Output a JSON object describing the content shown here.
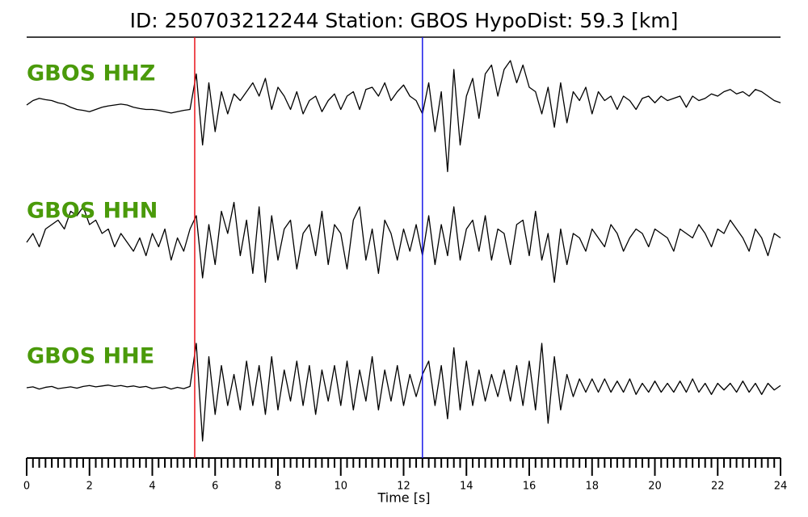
{
  "chart_data": {
    "type": "seismogram",
    "title": "ID: 250703212244   Station: GBOS   HypoDist:    59.3 [km]",
    "xlabel": "Time [s]",
    "xlim": [
      0,
      24
    ],
    "xticks": [
      0,
      2,
      4,
      6,
      8,
      10,
      12,
      14,
      16,
      18,
      20,
      22,
      24
    ],
    "minor_ticks_per_major": 10,
    "ylim": [
      -1.6,
      1.6
    ],
    "label_color": "#4a9a0a",
    "picks": [
      {
        "time": 5.35,
        "color": "#e8131a"
      },
      {
        "time": 12.6,
        "color": "#1a1ae8"
      }
    ],
    "x": [
      0,
      0.2,
      0.4,
      0.6,
      0.8,
      1,
      1.2,
      1.4,
      1.6,
      1.8,
      2,
      2.2,
      2.4,
      2.6,
      2.8,
      3,
      3.2,
      3.4,
      3.6,
      3.8,
      4,
      4.2,
      4.4,
      4.6,
      4.8,
      5,
      5.2,
      5.4,
      5.6,
      5.8,
      6,
      6.2,
      6.4,
      6.6,
      6.8,
      7,
      7.2,
      7.4,
      7.6,
      7.8,
      8,
      8.2,
      8.4,
      8.6,
      8.8,
      9,
      9.2,
      9.4,
      9.6,
      9.8,
      10,
      10.2,
      10.4,
      10.6,
      10.8,
      11,
      11.2,
      11.4,
      11.6,
      11.8,
      12,
      12.2,
      12.4,
      12.6,
      12.8,
      13,
      13.2,
      13.4,
      13.6,
      13.8,
      14,
      14.2,
      14.4,
      14.6,
      14.8,
      15,
      15.2,
      15.4,
      15.6,
      15.8,
      16,
      16.2,
      16.4,
      16.6,
      16.8,
      17,
      17.2,
      17.4,
      17.6,
      17.8,
      18,
      18.2,
      18.4,
      18.6,
      18.8,
      19,
      19.2,
      19.4,
      19.6,
      19.8,
      20,
      20.2,
      20.4,
      20.6,
      20.8,
      21,
      21.2,
      21.4,
      21.6,
      21.8,
      22,
      22.2,
      22.4,
      22.6,
      22.8,
      23,
      23.2,
      23.4,
      23.6,
      23.8,
      24
    ],
    "series": [
      {
        "name": "GBOS HHZ",
        "color": "#000000",
        "values": [
          0,
          0.1,
          0.15,
          0.12,
          0.1,
          0.05,
          0.02,
          -0.05,
          -0.1,
          -0.12,
          -0.15,
          -0.1,
          -0.05,
          -0.02,
          0,
          0.02,
          0,
          -0.05,
          -0.08,
          -0.1,
          -0.1,
          -0.12,
          -0.15,
          -0.18,
          -0.15,
          -0.12,
          -0.1,
          0.7,
          -0.9,
          0.5,
          -0.6,
          0.3,
          -0.2,
          0.25,
          0.1,
          0.3,
          0.5,
          0.2,
          0.6,
          -0.1,
          0.4,
          0.2,
          -0.1,
          0.3,
          -0.2,
          0.1,
          0.2,
          -0.15,
          0.1,
          0.25,
          -0.1,
          0.2,
          0.3,
          -0.1,
          0.35,
          0.4,
          0.2,
          0.5,
          0.1,
          0.3,
          0.45,
          0.2,
          0.1,
          -0.2,
          0.5,
          -0.6,
          0.3,
          -1.5,
          0.8,
          -0.9,
          0.2,
          0.6,
          -0.3,
          0.7,
          0.9,
          0.2,
          0.8,
          1.0,
          0.5,
          0.9,
          0.4,
          0.3,
          -0.2,
          0.4,
          -0.5,
          0.5,
          -0.4,
          0.3,
          0.1,
          0.4,
          -0.2,
          0.3,
          0.1,
          0.2,
          -0.1,
          0.2,
          0.1,
          -0.1,
          0.15,
          0.2,
          0.05,
          0.2,
          0.1,
          0.15,
          0.2,
          -0.05,
          0.2,
          0.1,
          0.15,
          0.25,
          0.2,
          0.3,
          0.35,
          0.25,
          0.3,
          0.2,
          0.35,
          0.3,
          0.2,
          0.1,
          0.05
        ]
      },
      {
        "name": "GBOS HHN",
        "color": "#000000",
        "values": [
          0,
          0.2,
          -0.1,
          0.3,
          0.4,
          0.5,
          0.3,
          0.7,
          0.6,
          0.8,
          0.4,
          0.5,
          0.2,
          0.3,
          -0.1,
          0.2,
          0,
          -0.2,
          0.1,
          -0.3,
          0.2,
          -0.1,
          0.3,
          -0.4,
          0.1,
          -0.2,
          0.3,
          0.6,
          -0.8,
          0.4,
          -0.5,
          0.7,
          0.2,
          0.9,
          -0.3,
          0.5,
          -0.7,
          0.8,
          -0.9,
          0.6,
          -0.4,
          0.3,
          0.5,
          -0.6,
          0.2,
          0.4,
          -0.3,
          0.7,
          -0.5,
          0.4,
          0.2,
          -0.6,
          0.5,
          0.8,
          -0.4,
          0.3,
          -0.7,
          0.5,
          0.2,
          -0.4,
          0.3,
          -0.2,
          0.4,
          -0.3,
          0.6,
          -0.5,
          0.4,
          -0.3,
          0.8,
          -0.4,
          0.3,
          0.5,
          -0.2,
          0.6,
          -0.4,
          0.3,
          0.2,
          -0.5,
          0.4,
          0.5,
          -0.3,
          0.7,
          -0.4,
          0.2,
          -0.9,
          0.3,
          -0.5,
          0.2,
          0.1,
          -0.2,
          0.3,
          0.1,
          -0.1,
          0.4,
          0.2,
          -0.2,
          0.1,
          0.3,
          0.2,
          -0.1,
          0.3,
          0.2,
          0.1,
          -0.2,
          0.3,
          0.2,
          0.1,
          0.4,
          0.2,
          -0.1,
          0.3,
          0.2,
          0.5,
          0.3,
          0.1,
          -0.2,
          0.3,
          0.1,
          -0.3,
          0.2,
          0.1
        ]
      },
      {
        "name": "GBOS HHE",
        "color": "#000000",
        "values": [
          0,
          0.02,
          -0.03,
          0.01,
          0.03,
          -0.02,
          0,
          0.02,
          -0.01,
          0.03,
          0.05,
          0.02,
          0.04,
          0.06,
          0.03,
          0.05,
          0.02,
          0.04,
          0.01,
          0.03,
          -0.02,
          0,
          0.02,
          -0.03,
          0.01,
          -0.02,
          0.03,
          1.0,
          -1.2,
          0.7,
          -0.6,
          0.5,
          -0.4,
          0.3,
          -0.5,
          0.6,
          -0.4,
          0.5,
          -0.6,
          0.7,
          -0.5,
          0.4,
          -0.3,
          0.6,
          -0.4,
          0.5,
          -0.6,
          0.4,
          -0.3,
          0.5,
          -0.4,
          0.6,
          -0.5,
          0.4,
          -0.3,
          0.7,
          -0.5,
          0.4,
          -0.3,
          0.5,
          -0.4,
          0.3,
          -0.2,
          0.3,
          0.6,
          -0.4,
          0.5,
          -0.7,
          0.9,
          -0.5,
          0.6,
          -0.4,
          0.4,
          -0.3,
          0.3,
          -0.2,
          0.4,
          -0.3,
          0.5,
          -0.4,
          0.6,
          -0.5,
          1.0,
          -0.8,
          0.7,
          -0.5,
          0.3,
          -0.2,
          0.2,
          -0.1,
          0.2,
          -0.1,
          0.2,
          -0.1,
          0.15,
          -0.1,
          0.2,
          -0.15,
          0.1,
          -0.1,
          0.15,
          -0.1,
          0.1,
          -0.1,
          0.15,
          -0.1,
          0.2,
          -0.1,
          0.1,
          -0.15,
          0.1,
          -0.05,
          0.1,
          -0.1,
          0.15,
          -0.1,
          0.1,
          -0.15,
          0.1,
          -0.05,
          0.05
        ]
      }
    ]
  }
}
